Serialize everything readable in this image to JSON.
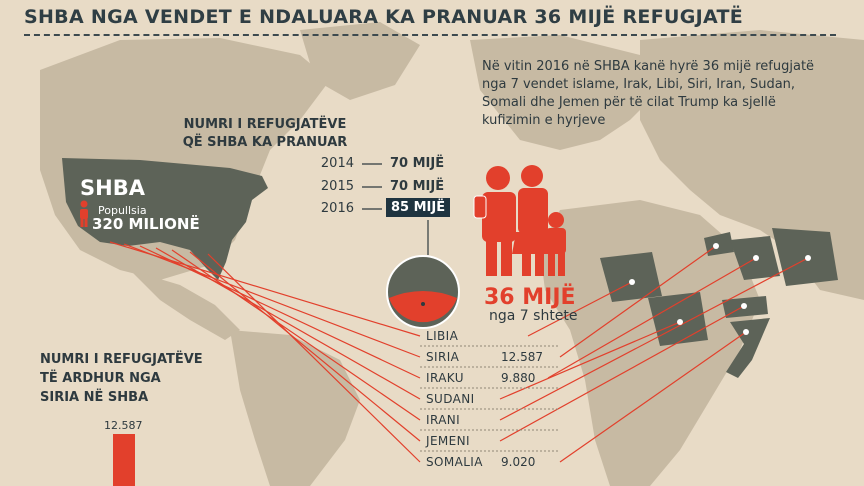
{
  "header": {
    "title": "SHBA NGA VENDET E NDALUARA KA PRANUAR 36 MIJË REFUGJATË"
  },
  "intro": {
    "text": "Në vitin 2016 në SHBA kanë hyrë 36 mijë refugjatë nga 7 vendet islame, Irak, Libi, Siri, Iran, Sudan, Somali dhe Jemen për të cilat Trump ka sjellë kufizimin e hyrjeve"
  },
  "refugees_section": {
    "heading_line1": "NUMRI I REFUGJATËVE",
    "heading_line2": "QË SHBA KA PRANUAR",
    "rows": [
      {
        "year": "2014",
        "value": "70 MIJË"
      },
      {
        "year": "2015",
        "value": "70 MIJË"
      },
      {
        "year": "2016",
        "value": "85 MIJË"
      }
    ]
  },
  "usa": {
    "name": "SHBA",
    "population_label": "Popullsia",
    "population_value": "320 MILIONË"
  },
  "total": {
    "value": "36 MIJË",
    "subtitle": "nga 7 shtete",
    "share_of_2016": 0.42
  },
  "countries": [
    {
      "name": "LIBIA",
      "value": ""
    },
    {
      "name": "SIRIA",
      "value": "12.587"
    },
    {
      "name": "IRAKU",
      "value": "9.880"
    },
    {
      "name": "SUDANI",
      "value": ""
    },
    {
      "name": "IRANI",
      "value": ""
    },
    {
      "name": "JEMENI",
      "value": ""
    },
    {
      "name": "SOMALIA",
      "value": "9.020"
    }
  ],
  "syria_section": {
    "heading_line1": "NUMRI I REFUGJATËVE",
    "heading_line2": "TË ARDHUR NGA",
    "heading_line3": "SIRIA NË SHBA",
    "bar_value": "12.587"
  },
  "colors": {
    "accent": "#e2402c",
    "dark": "#2e3a3f",
    "land": "#c9bca6",
    "usa_land": "#5d6358",
    "highlight_bg": "#1f3440"
  },
  "icons": [
    "person-icon",
    "family-icon",
    "pie-icon"
  ]
}
